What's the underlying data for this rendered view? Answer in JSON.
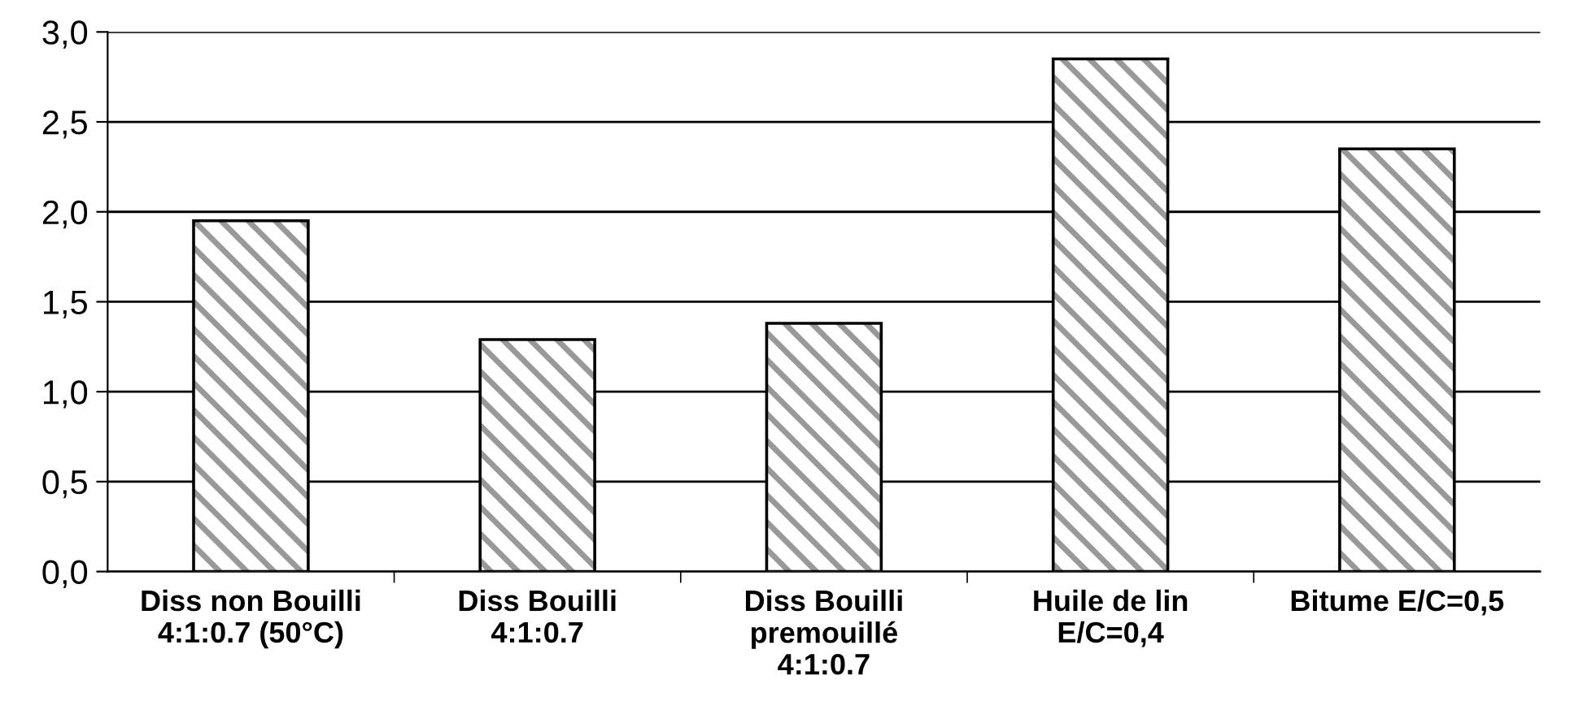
{
  "chart_data": {
    "type": "bar",
    "categories": [
      "Diss non Bouilli\n4:1:0.7 (50°C)",
      "Diss Bouilli\n4:1:0.7",
      "Diss Bouilli\npremouillé\n4:1:0.7",
      "Huile de lin\nE/C=0,4",
      "Bitume E/C=0,5"
    ],
    "values": [
      1.95,
      1.29,
      1.38,
      2.85,
      2.35
    ],
    "color": "#999999",
    "ylim": [
      0,
      3
    ],
    "yticks": [
      {
        "value": 0,
        "label": "0,0"
      },
      {
        "value": 0.5,
        "label": "0,5"
      },
      {
        "value": 1,
        "label": "1,0"
      },
      {
        "value": 1.5,
        "label": "1,5"
      },
      {
        "value": 2,
        "label": "2,0"
      },
      {
        "value": 2.5,
        "label": "2,5"
      },
      {
        "value": 3,
        "label": "3,0"
      }
    ],
    "grid": "y"
  }
}
